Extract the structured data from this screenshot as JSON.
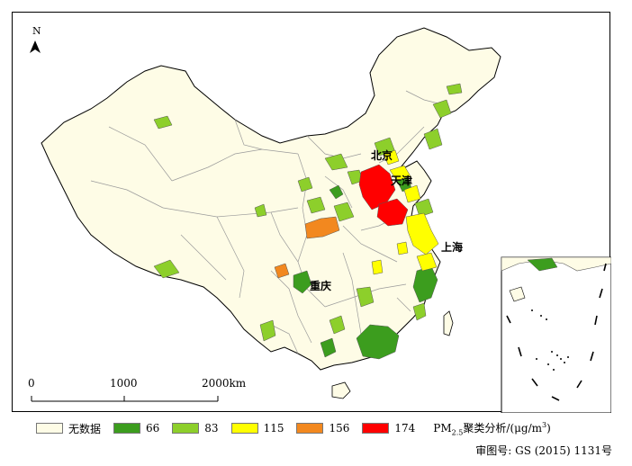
{
  "north_label": "N",
  "cities": {
    "beijing": "北京",
    "tianjin": "天津",
    "shanghai": "上海",
    "chongqing": "重庆"
  },
  "scale": {
    "ticks": [
      "0",
      "1000",
      "2000km"
    ]
  },
  "legend": {
    "items": [
      {
        "label": "无数据",
        "color": "#fefce6"
      },
      {
        "label": "66",
        "color": "#3c9d1e"
      },
      {
        "label": "83",
        "color": "#8dcf2b"
      },
      {
        "label": "115",
        "color": "#ffff00"
      },
      {
        "label": "156",
        "color": "#f2881f"
      },
      {
        "label": "174",
        "color": "#ff0000"
      }
    ],
    "title_main": "PM",
    "title_sub": "2.5",
    "title_rest": "聚类分析/(μg/m",
    "title_sup": "3",
    "title_end": ")"
  },
  "approval_text": "审图号: GS (2015) 1131号",
  "colors": {
    "no_data": "#fefce6",
    "boundary": "#9a9a9a",
    "outline": "#000000",
    "water": "#ffffff"
  }
}
